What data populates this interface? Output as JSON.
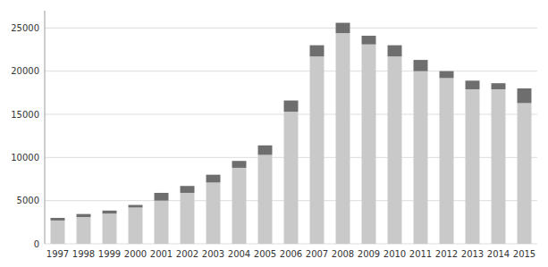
{
  "chart_data": {
    "type": "bar",
    "stacked": true,
    "grid": true,
    "categories": [
      "1997",
      "1998",
      "1999",
      "2000",
      "2001",
      "2002",
      "2003",
      "2004",
      "2005",
      "2006",
      "2007",
      "2008",
      "2009",
      "2010",
      "2011",
      "2012",
      "2013",
      "2014",
      "2015"
    ],
    "series": [
      {
        "color": "#c9c9c9",
        "values": [
          2700,
          3100,
          3500,
          4200,
          5000,
          5900,
          7100,
          8800,
          10300,
          15300,
          21700,
          24400,
          23100,
          21700,
          20000,
          19200,
          17900,
          17900,
          16300
        ]
      },
      {
        "color": "#6e6e6e",
        "values": [
          300,
          350,
          350,
          300,
          900,
          800,
          900,
          800,
          1100,
          1300,
          1300,
          1200,
          1000,
          1300,
          1300,
          800,
          1000,
          700,
          1700
        ]
      }
    ],
    "ylim": [
      0,
      27000
    ],
    "yticks": [
      0,
      5000,
      10000,
      15000,
      20000,
      25000
    ]
  }
}
